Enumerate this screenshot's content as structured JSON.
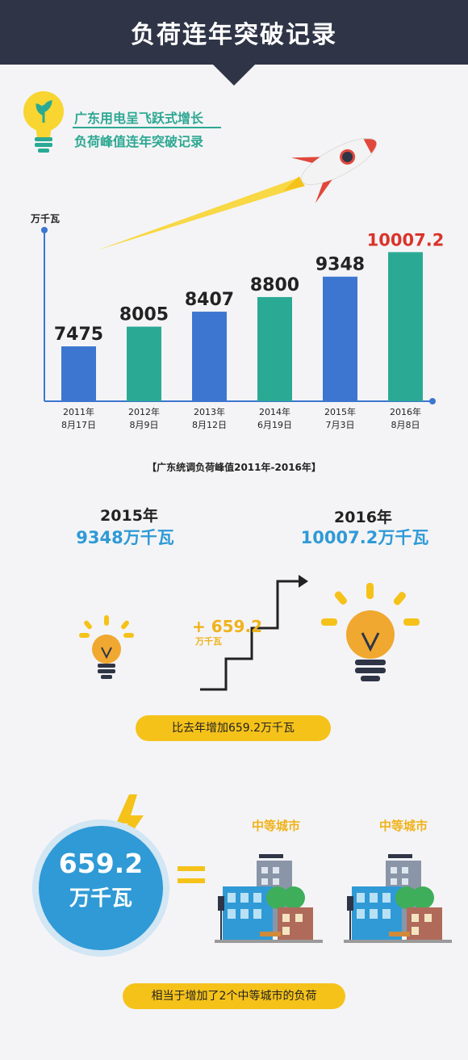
{
  "header": {
    "title": "负荷连年突破记录"
  },
  "subtitle": {
    "line1": "广东用电呈飞跃式增长",
    "line2": "负荷峰值连年突破记录"
  },
  "chart_data": {
    "type": "bar",
    "unit_label": "万千瓦",
    "categories": [
      {
        "year": "2011年",
        "date": "8月17日"
      },
      {
        "year": "2012年",
        "date": "8月9日"
      },
      {
        "year": "2013年",
        "date": "8月12日"
      },
      {
        "year": "2014年",
        "date": "6月19日"
      },
      {
        "year": "2015年",
        "date": "7月3日"
      },
      {
        "year": "2016年",
        "date": "8月8日"
      }
    ],
    "values": [
      7475,
      8005,
      8407,
      8800,
      9348,
      10007.2
    ],
    "value_labels": [
      "7475",
      "8005",
      "8407",
      "8800",
      "9348",
      "10007.2"
    ],
    "colors": [
      "#3d76d0",
      "#2aaa94",
      "#3d76d0",
      "#2aaa94",
      "#3d76d0",
      "#2aaa94"
    ],
    "highlight_label_color": "#d9342b",
    "caption": "【广东统调负荷峰值2011年-2016年】"
  },
  "comparison": {
    "left": {
      "year": "2015年",
      "value": "9348万千瓦"
    },
    "right": {
      "year": "2016年",
      "value": "10007.2万千瓦"
    },
    "increase_value": "+ 659.2",
    "increase_unit": "万千瓦",
    "pill_text": "比去年增加659.2万千瓦"
  },
  "equivalence": {
    "circle_value": "659.2",
    "circle_unit": "万千瓦",
    "city_label_1": "中等城市",
    "city_label_2": "中等城市",
    "pill_text": "相当于增加了2个中等城市的负荷"
  },
  "icons": [
    "lightbulb-icon",
    "rocket-icon",
    "lightning-icon",
    "city-icon",
    "stairs-arrow-icon"
  ],
  "colors": {
    "header": "#2f3547",
    "blue": "#2f9ad6",
    "teal": "#2aaa94",
    "yellow": "#f5c21a",
    "red": "#d9342b"
  }
}
